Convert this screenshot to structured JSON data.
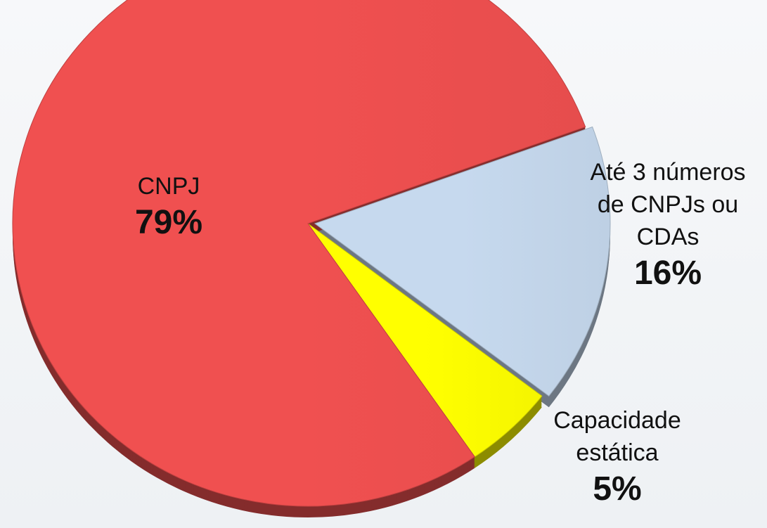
{
  "chart_data": {
    "type": "pie",
    "categories": [
      "CNPJ",
      "Até 3 números de CNPJs ou CDAs",
      "Capacidade estática"
    ],
    "values": [
      79,
      16,
      5
    ],
    "value_labels": [
      "79%",
      "16%",
      "5%"
    ],
    "colors": [
      "#f05050",
      "#c6d9ee",
      "#ffff00"
    ]
  }
}
